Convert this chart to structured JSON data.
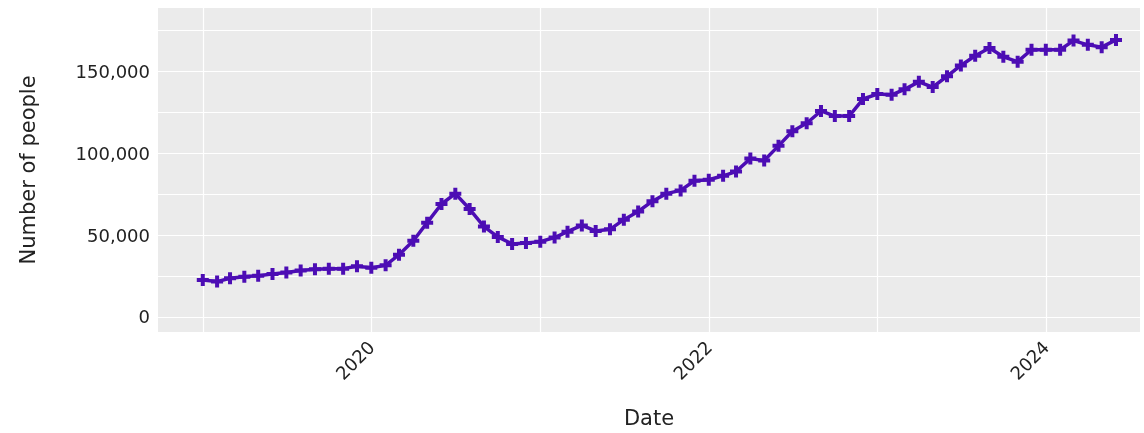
{
  "chart_data": {
    "type": "line",
    "xlabel": "Date",
    "ylabel": "Number of people",
    "x": [
      "2019-01",
      "2019-02",
      "2019-03",
      "2019-04",
      "2019-05",
      "2019-06",
      "2019-07",
      "2019-08",
      "2019-09",
      "2019-10",
      "2019-11",
      "2019-12",
      "2020-01",
      "2020-02",
      "2020-03",
      "2020-04",
      "2020-05",
      "2020-06",
      "2020-07",
      "2020-08",
      "2020-09",
      "2020-10",
      "2020-11",
      "2020-12",
      "2021-01",
      "2021-02",
      "2021-03",
      "2021-04",
      "2021-05",
      "2021-06",
      "2021-07",
      "2021-08",
      "2021-09",
      "2021-10",
      "2021-11",
      "2021-12",
      "2022-01",
      "2022-02",
      "2022-03",
      "2022-04",
      "2022-05",
      "2022-06",
      "2022-07",
      "2022-08",
      "2022-09",
      "2022-10",
      "2022-11",
      "2022-12",
      "2023-01",
      "2023-02",
      "2023-03",
      "2023-04",
      "2023-05",
      "2023-06",
      "2023-07",
      "2023-08",
      "2023-09",
      "2023-10",
      "2023-11",
      "2023-12",
      "2024-01",
      "2024-02",
      "2024-03",
      "2024-04",
      "2024-05",
      "2024-06"
    ],
    "series": [
      {
        "color": "#4c0db4",
        "values": [
          22600,
          21600,
          23600,
          24600,
          25200,
          26200,
          27100,
          28300,
          29100,
          29500,
          29500,
          30900,
          30100,
          31500,
          38000,
          46500,
          57600,
          69000,
          75300,
          65900,
          55200,
          48900,
          44600,
          45200,
          46000,
          48500,
          52100,
          55900,
          52500,
          53500,
          59400,
          64400,
          70700,
          75300,
          77300,
          83200,
          83800,
          86200,
          88800,
          96700,
          95500,
          104500,
          113400,
          118300,
          125800,
          122700,
          122700,
          133100,
          136100,
          135700,
          139000,
          143600,
          140400,
          147000,
          153600,
          159500,
          164300,
          158900,
          155900,
          163200,
          163200,
          163200,
          168800,
          166200,
          164800,
          169200
        ]
      }
    ],
    "xlim": [
      "2018-09-26",
      "2024-07-23"
    ],
    "xticks": [
      {
        "value": "2019-01-01",
        "label": null
      },
      {
        "value": "2020-01-01",
        "label": "2020"
      },
      {
        "value": "2021-01-01",
        "label": null
      },
      {
        "value": "2022-01-01",
        "label": "2022"
      },
      {
        "value": "2023-01-01",
        "label": null
      },
      {
        "value": "2024-01-01",
        "label": "2024"
      }
    ],
    "ylim": [
      -9200,
      188700
    ],
    "yticks": [
      {
        "value": 0,
        "label": "0"
      },
      {
        "value": 25000,
        "label": null
      },
      {
        "value": 50000,
        "label": "50,000"
      },
      {
        "value": 75000,
        "label": null
      },
      {
        "value": 100000,
        "label": "100,000"
      },
      {
        "value": 125000,
        "label": null
      },
      {
        "value": 150000,
        "label": "150,000"
      },
      {
        "value": 175000,
        "label": null
      }
    ],
    "grid": true,
    "marker": "cross",
    "line_style": "solid"
  }
}
